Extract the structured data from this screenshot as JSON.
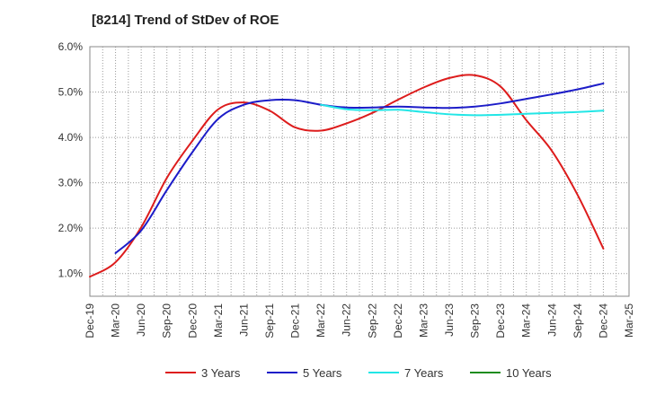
{
  "chart_data": {
    "type": "line",
    "title": "[8214]  Trend of StDev of ROE",
    "xlabel": "",
    "ylabel": "",
    "x_ticks": [
      "Dec-19",
      "Mar-20",
      "Jun-20",
      "Sep-20",
      "Dec-20",
      "Mar-21",
      "Jun-21",
      "Sep-21",
      "Dec-21",
      "Mar-22",
      "Jun-22",
      "Sep-22",
      "Dec-22",
      "Mar-23",
      "Jun-23",
      "Sep-23",
      "Dec-23",
      "Mar-24",
      "Jun-24",
      "Sep-24",
      "Dec-24",
      "Mar-25"
    ],
    "y_ticks": [
      "1.0%",
      "2.0%",
      "3.0%",
      "4.0%",
      "5.0%",
      "6.0%"
    ],
    "ylim": [
      0.5,
      6.0
    ],
    "grid": true,
    "legend_position": "bottom",
    "series": [
      {
        "name": "3 Years",
        "color": "#dd1c1c",
        "x": [
          "Dec-19",
          "Mar-20",
          "Jun-20",
          "Sep-20",
          "Dec-20",
          "Mar-21",
          "Jun-21",
          "Sep-21",
          "Dec-21",
          "Mar-22",
          "Jun-22",
          "Sep-22",
          "Dec-22",
          "Mar-23",
          "Jun-23",
          "Sep-23",
          "Dec-23",
          "Mar-24",
          "Jun-24",
          "Sep-24",
          "Dec-24"
        ],
        "values": [
          0.93,
          1.25,
          2.02,
          3.11,
          3.93,
          4.62,
          4.77,
          4.59,
          4.22,
          4.15,
          4.31,
          4.54,
          4.83,
          5.1,
          5.31,
          5.37,
          5.12,
          4.38,
          3.7,
          2.73,
          1.55
        ]
      },
      {
        "name": "5 Years",
        "color": "#1c1cc8",
        "x": [
          "Mar-20",
          "Jun-20",
          "Sep-20",
          "Dec-20",
          "Mar-21",
          "Jun-21",
          "Sep-21",
          "Dec-21",
          "Mar-22",
          "Jun-22",
          "Sep-22",
          "Dec-22",
          "Mar-23",
          "Jun-23",
          "Sep-23",
          "Dec-23",
          "Mar-24",
          "Jun-24",
          "Sep-24",
          "Dec-24"
        ],
        "values": [
          1.45,
          1.95,
          2.84,
          3.68,
          4.41,
          4.72,
          4.82,
          4.82,
          4.72,
          4.66,
          4.66,
          4.68,
          4.66,
          4.65,
          4.68,
          4.75,
          4.85,
          4.95,
          5.06,
          5.19
        ]
      },
      {
        "name": "7 Years",
        "color": "#22e6e6",
        "x": [
          "Mar-22",
          "Jun-22",
          "Sep-22",
          "Dec-22",
          "Mar-23",
          "Jun-23",
          "Sep-23",
          "Dec-23",
          "Mar-24",
          "Jun-24",
          "Sep-24",
          "Dec-24"
        ],
        "values": [
          4.72,
          4.62,
          4.6,
          4.61,
          4.56,
          4.51,
          4.49,
          4.5,
          4.52,
          4.54,
          4.56,
          4.59
        ]
      },
      {
        "name": "10 Years",
        "color": "#1e8c1e",
        "x": [],
        "values": []
      }
    ]
  }
}
